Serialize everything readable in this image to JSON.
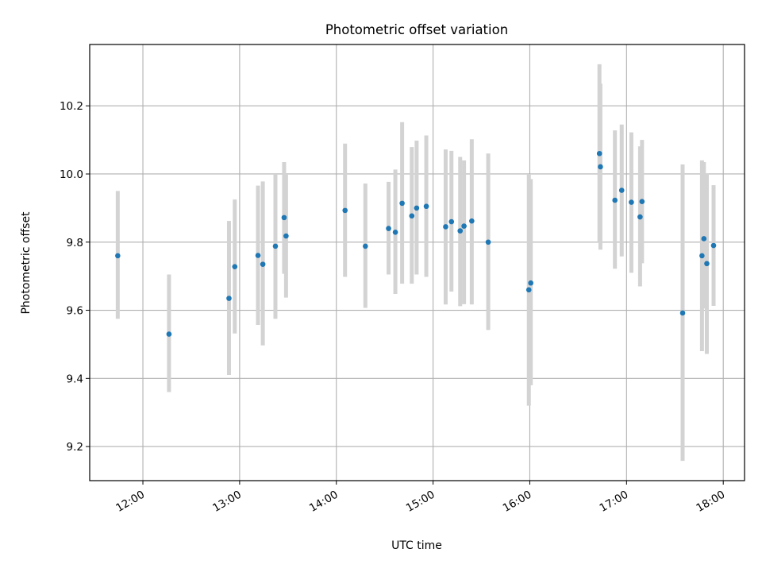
{
  "chart_data": {
    "type": "scatter",
    "title": "Photometric offset variation",
    "xlabel": "UTC time",
    "ylabel": "Photometric offset",
    "x_unit": "hours UTC",
    "xlim": [
      11.45,
      18.22
    ],
    "ylim": [
      9.1,
      10.38
    ],
    "grid": true,
    "marker_color": "#1f77b4",
    "errorbar_color": "#d3d3d3",
    "x_ticks": [
      {
        "value": 12,
        "label": "12:00"
      },
      {
        "value": 13,
        "label": "13:00"
      },
      {
        "value": 14,
        "label": "14:00"
      },
      {
        "value": 15,
        "label": "15:00"
      },
      {
        "value": 16,
        "label": "16:00"
      },
      {
        "value": 17,
        "label": "17:00"
      },
      {
        "value": 18,
        "label": "18:00"
      }
    ],
    "y_ticks": [
      {
        "value": 9.2,
        "label": "9.2"
      },
      {
        "value": 9.4,
        "label": "9.4"
      },
      {
        "value": 9.6,
        "label": "9.6"
      },
      {
        "value": 9.8,
        "label": "9.8"
      },
      {
        "value": 10.0,
        "label": "10.0"
      },
      {
        "value": 10.2,
        "label": "10.2"
      }
    ],
    "points": [
      {
        "x": 11.74,
        "y": 9.76,
        "lo": 9.575,
        "hi": 9.95
      },
      {
        "x": 12.27,
        "y": 9.53,
        "lo": 9.36,
        "hi": 9.705
      },
      {
        "x": 12.89,
        "y": 9.635,
        "lo": 9.41,
        "hi": 9.862
      },
      {
        "x": 12.95,
        "y": 9.728,
        "lo": 9.532,
        "hi": 9.925
      },
      {
        "x": 13.19,
        "y": 9.761,
        "lo": 9.557,
        "hi": 9.966
      },
      {
        "x": 13.24,
        "y": 9.735,
        "lo": 9.497,
        "hi": 9.978
      },
      {
        "x": 13.37,
        "y": 9.788,
        "lo": 9.575,
        "hi": 10.0
      },
      {
        "x": 13.46,
        "y": 9.872,
        "lo": 9.707,
        "hi": 10.035
      },
      {
        "x": 13.48,
        "y": 9.818,
        "lo": 9.637,
        "hi": 10.0
      },
      {
        "x": 14.09,
        "y": 9.893,
        "lo": 9.698,
        "hi": 10.089
      },
      {
        "x": 14.3,
        "y": 9.788,
        "lo": 9.607,
        "hi": 9.972
      },
      {
        "x": 14.54,
        "y": 9.84,
        "lo": 9.705,
        "hi": 9.977
      },
      {
        "x": 14.61,
        "y": 9.829,
        "lo": 9.648,
        "hi": 10.013
      },
      {
        "x": 14.68,
        "y": 9.914,
        "lo": 9.678,
        "hi": 10.152
      },
      {
        "x": 14.78,
        "y": 9.877,
        "lo": 9.678,
        "hi": 10.079
      },
      {
        "x": 14.83,
        "y": 9.9,
        "lo": 9.705,
        "hi": 10.098
      },
      {
        "x": 14.93,
        "y": 9.905,
        "lo": 9.698,
        "hi": 10.113
      },
      {
        "x": 15.13,
        "y": 9.845,
        "lo": 9.617,
        "hi": 10.072
      },
      {
        "x": 15.19,
        "y": 9.86,
        "lo": 9.655,
        "hi": 10.068
      },
      {
        "x": 15.28,
        "y": 9.833,
        "lo": 9.612,
        "hi": 10.05
      },
      {
        "x": 15.32,
        "y": 9.847,
        "lo": 9.618,
        "hi": 10.04
      },
      {
        "x": 15.4,
        "y": 9.862,
        "lo": 9.617,
        "hi": 10.102
      },
      {
        "x": 15.57,
        "y": 9.8,
        "lo": 9.542,
        "hi": 10.06
      },
      {
        "x": 15.99,
        "y": 9.66,
        "lo": 9.32,
        "hi": 10.0
      },
      {
        "x": 16.01,
        "y": 9.68,
        "lo": 9.38,
        "hi": 9.985
      },
      {
        "x": 16.72,
        "y": 10.06,
        "lo": 9.8,
        "hi": 10.322
      },
      {
        "x": 16.73,
        "y": 10.021,
        "lo": 9.778,
        "hi": 10.265
      },
      {
        "x": 16.88,
        "y": 9.923,
        "lo": 9.722,
        "hi": 10.128
      },
      {
        "x": 16.95,
        "y": 9.952,
        "lo": 9.758,
        "hi": 10.145
      },
      {
        "x": 17.05,
        "y": 9.917,
        "lo": 9.71,
        "hi": 10.122
      },
      {
        "x": 17.14,
        "y": 9.874,
        "lo": 9.67,
        "hi": 10.081
      },
      {
        "x": 17.16,
        "y": 9.919,
        "lo": 9.738,
        "hi": 10.1
      },
      {
        "x": 17.58,
        "y": 9.592,
        "lo": 9.158,
        "hi": 10.028
      },
      {
        "x": 17.78,
        "y": 9.76,
        "lo": 9.48,
        "hi": 10.04
      },
      {
        "x": 17.8,
        "y": 9.81,
        "lo": 9.605,
        "hi": 10.035
      },
      {
        "x": 17.83,
        "y": 9.737,
        "lo": 9.472,
        "hi": 10.002
      },
      {
        "x": 17.9,
        "y": 9.79,
        "lo": 9.613,
        "hi": 9.967
      }
    ]
  }
}
